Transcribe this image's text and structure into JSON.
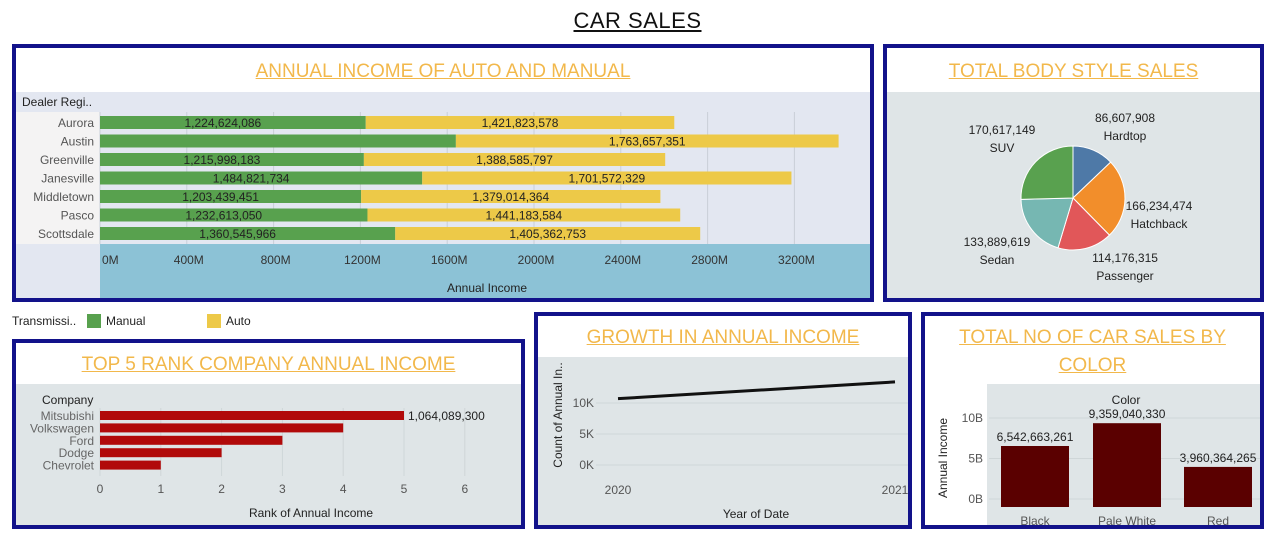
{
  "header": {
    "title": "CAR SALES"
  },
  "panels": {
    "income": {
      "title": "ANNUAL INCOME OF AUTO AND MANUAL",
      "row_header": "Dealer Regi..",
      "x_title": "Annual Income"
    },
    "body": {
      "title": "TOTAL BODY STYLE SALES"
    },
    "legend": {
      "label": "Transmissi..",
      "items": [
        {
          "name": "Manual",
          "color": "#58a14e"
        },
        {
          "name": "Auto",
          "color": "#edc948"
        }
      ]
    },
    "top5": {
      "title": "TOP 5 RANK COMPANY ANNUAL INCOME",
      "row_header": "Company",
      "x_title": "Rank of Annual Income"
    },
    "growth": {
      "title": "GROWTH IN ANNUAL INCOME",
      "x_title": "Year of Date",
      "y_title": "Count of Annual In.."
    },
    "color": {
      "title_line1": "TOTAL NO OF CAR SALES BY",
      "title_line2": "COLOR",
      "top_header": "Color",
      "y_title": "Annual Income"
    }
  },
  "chart_data": [
    {
      "type": "bar",
      "orientation": "horizontal",
      "stacked": true,
      "title": "ANNUAL INCOME OF AUTO AND MANUAL",
      "categories": [
        "Aurora",
        "Austin",
        "Greenville",
        "Janesville",
        "Middletown",
        "Pasco",
        "Scottsdale"
      ],
      "series": [
        {
          "name": "Manual",
          "color": "#58a14e",
          "values": [
            1224624086,
            1640000000,
            1215998183,
            1484821734,
            1203439451,
            1232613050,
            1360545966
          ],
          "labels": [
            "1,224,624,086",
            "",
            "1,215,998,183",
            "1,484,821,734",
            "1,203,439,451",
            "1,232,613,050",
            "1,360,545,966"
          ]
        },
        {
          "name": "Auto",
          "color": "#edc948",
          "values": [
            1421823578,
            1763657351,
            1388585797,
            1701572329,
            1379014364,
            1441183584,
            1405362753
          ],
          "labels": [
            "1,421,823,578",
            "1,763,657,351",
            "1,388,585,797",
            "1,701,572,329",
            "1,379,014,364",
            "1,441,183,584",
            "1,405,362,753"
          ]
        }
      ],
      "xlabel": "Annual Income",
      "ticks": [
        0,
        400000000,
        800000000,
        1200000000,
        1600000000,
        2000000000,
        2400000000,
        2800000000,
        3200000000
      ],
      "tick_labels": [
        "0M",
        "400M",
        "800M",
        "1200M",
        "1600M",
        "2000M",
        "2400M",
        "2800M",
        "3200M"
      ],
      "xlim": [
        0,
        3600000000
      ]
    },
    {
      "type": "pie",
      "title": "TOTAL BODY STYLE SALES",
      "slices": [
        {
          "name": "Hardtop",
          "value": 86607908,
          "label": "86,607,908",
          "color": "#4e79a7"
        },
        {
          "name": "Hatchback",
          "value": 166234474,
          "label": "166,234,474",
          "color": "#f28e2b"
        },
        {
          "name": "Passenger",
          "value": 114176315,
          "label": "114,176,315",
          "color": "#e15759"
        },
        {
          "name": "Sedan",
          "value": 133889619,
          "label": "133,889,619",
          "color": "#76b7b2"
        },
        {
          "name": "SUV",
          "value": 170617149,
          "label": "170,617,149",
          "color": "#59a14f"
        }
      ]
    },
    {
      "type": "bar",
      "orientation": "horizontal",
      "title": "TOP 5 RANK COMPANY ANNUAL INCOME",
      "categories": [
        "Mitsubishi",
        "Volkswagen",
        "Ford",
        "Dodge",
        "Chevrolet"
      ],
      "values": [
        5,
        4,
        3,
        2,
        1
      ],
      "color": "#b10a0a",
      "annotation": "1,064,089,300",
      "xlabel": "Rank of Annual Income",
      "ticks": [
        0,
        1,
        2,
        3,
        4,
        5,
        6,
        7
      ],
      "xlim": [
        0,
        7
      ]
    },
    {
      "type": "line",
      "title": "GROWTH IN ANNUAL INCOME",
      "x": [
        "2020",
        "2021"
      ],
      "values": [
        10700,
        13400
      ],
      "color": "#111111",
      "xlabel": "Year of Date",
      "ylabel": "Count of Annual In..",
      "yticks": [
        0,
        5000,
        10000
      ],
      "ytick_labels": [
        "0K",
        "5K",
        "10K"
      ],
      "ylim": [
        0,
        14000
      ]
    },
    {
      "type": "bar",
      "title": "TOTAL NO OF CAR SALES BY COLOR",
      "categories": [
        "Black",
        "Pale White",
        "Red"
      ],
      "values": [
        6542663261,
        9359040330,
        3960364265
      ],
      "labels": [
        "6,542,663,261",
        "9,359,040,330",
        "3,960,364,265"
      ],
      "color": "#5a0000",
      "ylabel": "Annual Income",
      "yticks": [
        0,
        5000000000,
        10000000000
      ],
      "ytick_labels": [
        "0B",
        "5B",
        "10B"
      ],
      "ylim": [
        0,
        11000000000
      ]
    }
  ]
}
